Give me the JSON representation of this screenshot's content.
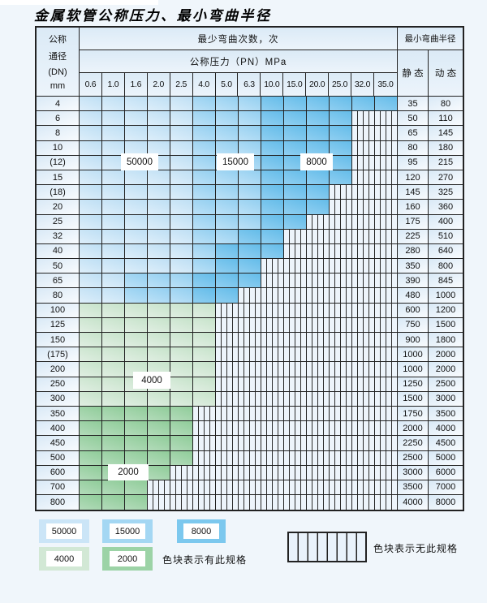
{
  "title": "金属软管公称压力、最小弯曲半径",
  "header": {
    "dn_lines": [
      "公称",
      "通径",
      "(DN)",
      "mm"
    ],
    "bend_times_label": "最少弯曲次数，次",
    "pressure_label": "公称压力（PN）MPa",
    "pressures": [
      "0.6",
      "1.0",
      "1.6",
      "2.0",
      "2.5",
      "4.0",
      "5.0",
      "6.3",
      "10.0",
      "15.0",
      "20.0",
      "25.0",
      "32.0",
      "35.0"
    ],
    "radius_label": "最小弯曲半径",
    "static_label": "静 态",
    "dynamic_label": "动 态"
  },
  "rows": [
    {
      "dn": "4",
      "zones": [
        [
          "z50000",
          5
        ],
        [
          "z15000",
          3
        ],
        [
          "z8000",
          6
        ]
      ],
      "static": "35",
      "dynamic": "80"
    },
    {
      "dn": "6",
      "zones": [
        [
          "z50000",
          5
        ],
        [
          "z15000",
          3
        ],
        [
          "z8000",
          4
        ]
      ],
      "static": "50",
      "dynamic": "110"
    },
    {
      "dn": "8",
      "zones": [
        [
          "z50000",
          5
        ],
        [
          "z15000",
          3
        ],
        [
          "z8000",
          4
        ]
      ],
      "static": "65",
      "dynamic": "145"
    },
    {
      "dn": "10",
      "zones": [
        [
          "z50000",
          5
        ],
        [
          "z15000",
          3
        ],
        [
          "z8000",
          4
        ]
      ],
      "static": "80",
      "dynamic": "180"
    },
    {
      "dn": "(12)",
      "zones": [
        [
          "z50000",
          5
        ],
        [
          "z15000",
          3
        ],
        [
          "z8000",
          4
        ]
      ],
      "static": "95",
      "dynamic": "215"
    },
    {
      "dn": "15",
      "zones": [
        [
          "z50000",
          5
        ],
        [
          "z15000",
          3
        ],
        [
          "z8000",
          4
        ]
      ],
      "static": "120",
      "dynamic": "270"
    },
    {
      "dn": "(18)",
      "zones": [
        [
          "z50000",
          5
        ],
        [
          "z15000",
          3
        ],
        [
          "z8000",
          3
        ]
      ],
      "static": "145",
      "dynamic": "325"
    },
    {
      "dn": "20",
      "zones": [
        [
          "z50000",
          5
        ],
        [
          "z15000",
          3
        ],
        [
          "z8000",
          3
        ]
      ],
      "static": "160",
      "dynamic": "360"
    },
    {
      "dn": "25",
      "zones": [
        [
          "z50000",
          5
        ],
        [
          "z15000",
          3
        ],
        [
          "z8000",
          2
        ]
      ],
      "static": "175",
      "dynamic": "400"
    },
    {
      "dn": "32",
      "zones": [
        [
          "z50000",
          5
        ],
        [
          "z15000",
          2
        ],
        [
          "z8000",
          2
        ]
      ],
      "static": "225",
      "dynamic": "510"
    },
    {
      "dn": "40",
      "zones": [
        [
          "z50000",
          5
        ],
        [
          "z15000",
          1
        ],
        [
          "z8000",
          3
        ]
      ],
      "static": "280",
      "dynamic": "640"
    },
    {
      "dn": "50",
      "zones": [
        [
          "z50000",
          5
        ],
        [
          "z15000",
          1
        ],
        [
          "z8000",
          2
        ]
      ],
      "static": "350",
      "dynamic": "800"
    },
    {
      "dn": "65",
      "zones": [
        [
          "z50000",
          2
        ],
        [
          "z15000",
          3
        ],
        [
          "z8000",
          3
        ]
      ],
      "static": "390",
      "dynamic": "845"
    },
    {
      "dn": "80",
      "zones": [
        [
          "z50000",
          2
        ],
        [
          "z15000",
          3
        ],
        [
          "z8000",
          2
        ]
      ],
      "static": "480",
      "dynamic": "1000"
    },
    {
      "dn": "100",
      "zones": [
        [
          "z4000",
          6
        ]
      ],
      "static": "600",
      "dynamic": "1200"
    },
    {
      "dn": "125",
      "zones": [
        [
          "z4000",
          6
        ]
      ],
      "static": "750",
      "dynamic": "1500"
    },
    {
      "dn": "150",
      "zones": [
        [
          "z4000",
          6
        ]
      ],
      "static": "900",
      "dynamic": "1800"
    },
    {
      "dn": "(175)",
      "zones": [
        [
          "z4000",
          6
        ]
      ],
      "static": "1000",
      "dynamic": "2000"
    },
    {
      "dn": "200",
      "zones": [
        [
          "z4000",
          6
        ]
      ],
      "static": "1000",
      "dynamic": "2000"
    },
    {
      "dn": "250",
      "zones": [
        [
          "z4000",
          6
        ]
      ],
      "static": "1250",
      "dynamic": "2500"
    },
    {
      "dn": "300",
      "zones": [
        [
          "z4000",
          6
        ]
      ],
      "static": "1500",
      "dynamic": "3000"
    },
    {
      "dn": "350",
      "zones": [
        [
          "z2000",
          5
        ]
      ],
      "static": "1750",
      "dynamic": "3500"
    },
    {
      "dn": "400",
      "zones": [
        [
          "z2000",
          5
        ]
      ],
      "static": "2000",
      "dynamic": "4000"
    },
    {
      "dn": "450",
      "zones": [
        [
          "z2000",
          5
        ]
      ],
      "static": "2250",
      "dynamic": "4500"
    },
    {
      "dn": "500",
      "zones": [
        [
          "z2000",
          5
        ]
      ],
      "static": "2500",
      "dynamic": "5000"
    },
    {
      "dn": "600",
      "zones": [
        [
          "z2000",
          4
        ]
      ],
      "static": "3000",
      "dynamic": "6000"
    },
    {
      "dn": "700",
      "zones": [
        [
          "z2000",
          3
        ]
      ],
      "static": "3500",
      "dynamic": "7000"
    },
    {
      "dn": "800",
      "zones": [
        [
          "z2000",
          3
        ]
      ],
      "static": "4000",
      "dynamic": "8000"
    }
  ],
  "overlays": [
    {
      "label": "50000"
    },
    {
      "label": "15000"
    },
    {
      "label": "8000"
    },
    {
      "label": "4000"
    },
    {
      "label": "2000"
    }
  ],
  "legend": {
    "swatches": [
      {
        "label": "50000",
        "shade": "z50000"
      },
      {
        "label": "15000",
        "shade": "z15000"
      },
      {
        "label": "8000",
        "shade": "z8000"
      },
      {
        "label": "4000",
        "shade": "z4000"
      },
      {
        "label": "2000",
        "shade": "z2000"
      }
    ],
    "has_spec_text": "色块表示有此规格",
    "no_spec_text": "色块表示无此规格"
  },
  "colors": {
    "page_bg": "#f0f6fb",
    "grid_border": "#222222",
    "blue_50000": "#cbe5f7",
    "blue_15000": "#a4d7f3",
    "blue_8000": "#7cc8ee",
    "green_4000": "#d2e8d5",
    "green_2000": "#9cd3a6",
    "no_spec_bg": "#edf4fb"
  }
}
